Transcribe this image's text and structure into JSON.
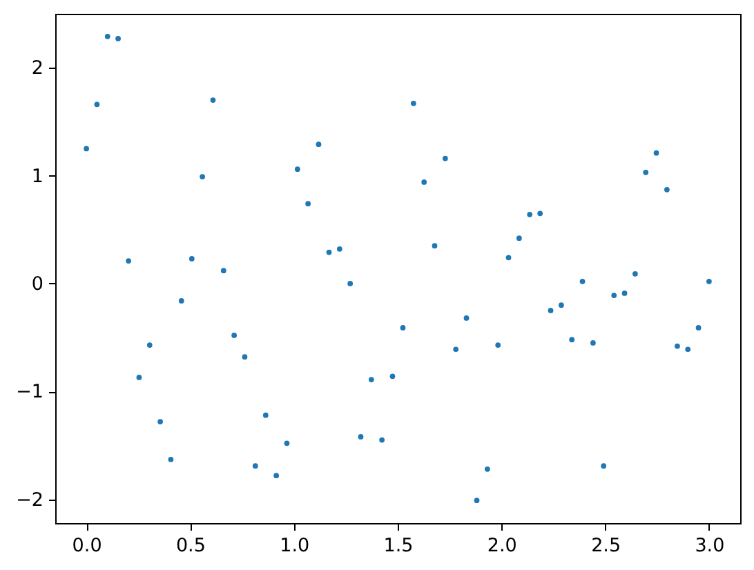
{
  "chart_data": {
    "type": "scatter",
    "marker": "circle",
    "grid": false,
    "x": [
      0,
      0.051,
      0.102,
      0.153,
      0.203,
      0.254,
      0.305,
      0.356,
      0.407,
      0.458,
      0.508,
      0.559,
      0.61,
      0.661,
      0.712,
      0.763,
      0.814,
      0.864,
      0.915,
      0.966,
      1.017,
      1.068,
      1.119,
      1.169,
      1.22,
      1.271,
      1.322,
      1.373,
      1.424,
      1.475,
      1.525,
      1.576,
      1.627,
      1.678,
      1.729,
      1.78,
      1.831,
      1.881,
      1.932,
      1.983,
      2.034,
      2.085,
      2.136,
      2.186,
      2.237,
      2.288,
      2.339,
      2.39,
      2.441,
      2.492,
      2.542,
      2.593,
      2.644,
      2.695,
      2.746,
      2.797,
      2.847,
      2.898,
      2.949,
      3.0
    ],
    "series": [
      {
        "color": "#1f77b4",
        "values": [
          1.25,
          1.66,
          2.29,
          2.27,
          0.21,
          -0.87,
          -0.57,
          -1.28,
          -1.63,
          -0.16,
          0.23,
          0.99,
          1.7,
          0.12,
          -0.48,
          -0.68,
          -1.69,
          -1.22,
          -1.78,
          -1.48,
          1.06,
          0.74,
          1.29,
          0.29,
          0.32,
          0.0,
          -1.42,
          -0.89,
          -1.45,
          -0.86,
          -0.41,
          1.67,
          0.94,
          0.35,
          1.16,
          -0.61,
          -0.32,
          -2.01,
          -1.72,
          -0.57,
          0.24,
          0.42,
          0.64,
          0.65,
          -0.25,
          -0.2,
          -0.52,
          0.02,
          -0.55,
          -1.69,
          -0.11,
          -0.09,
          0.09,
          1.03,
          1.21,
          0.87,
          -0.58,
          -0.61,
          -0.41,
          0.02
        ]
      }
    ],
    "xlim": [
      -0.15,
      3.15
    ],
    "ylim": [
      -2.22,
      2.5
    ],
    "xticks": [
      {
        "value": 0,
        "label": "0.0"
      },
      0.5,
      {
        "value": 1,
        "label": "1.0"
      },
      1.5,
      {
        "value": 2,
        "label": "2.0"
      },
      2.5,
      {
        "value": 3,
        "label": "3.0"
      }
    ],
    "yticks": [
      {
        "value": -2,
        "label": "−2"
      },
      {
        "value": -1,
        "label": "−1"
      },
      0,
      1,
      2
    ]
  }
}
